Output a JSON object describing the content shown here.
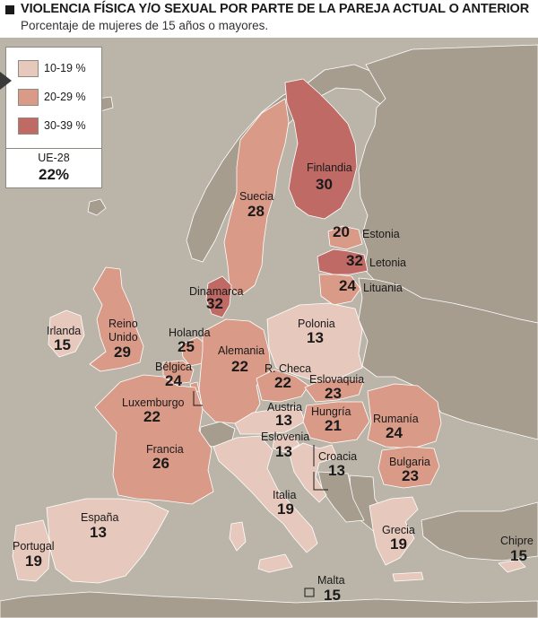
{
  "header": {
    "title": "VIOLENCIA FÍSICA Y/O SEXUAL POR PARTE DE LA PAREJA ACTUAL O ANTERIOR",
    "subtitle": "Porcentaje de mujeres de 15 años o mayores."
  },
  "legend": {
    "items": [
      {
        "label": "10-19 %",
        "color": "#e6c8bc"
      },
      {
        "label": "20-29 %",
        "color": "#d99a87"
      },
      {
        "label": "30-39 %",
        "color": "#c06a66"
      }
    ],
    "eu_label": "UE-28",
    "eu_value": "22%"
  },
  "colors": {
    "sea": "#bbb5a9",
    "non_eu_land": "#a69d8f",
    "border": "#ffffff"
  },
  "countries": {
    "finlandia": {
      "name": "Finlandia",
      "value": "30"
    },
    "suecia": {
      "name": "Suecia",
      "value": "28"
    },
    "estonia": {
      "name": "Estonia",
      "value": "20"
    },
    "letonia": {
      "name": "Letonia",
      "value": "32"
    },
    "lituania": {
      "name": "Lituania",
      "value": "24"
    },
    "dinamarca": {
      "name": "Dinamarca",
      "value": "32"
    },
    "irlanda": {
      "name": "Irlanda",
      "value": "15"
    },
    "reino_unido": {
      "name": "Reino Unido",
      "value": "29"
    },
    "holanda": {
      "name": "Holanda",
      "value": "25"
    },
    "belgica": {
      "name": "Bélgica",
      "value": "24"
    },
    "luxemburgo": {
      "name": "Luxemburgo",
      "value": "22"
    },
    "alemania": {
      "name": "Alemania",
      "value": "22"
    },
    "polonia": {
      "name": "Polonia",
      "value": "13"
    },
    "r_checa": {
      "name": "R. Checa",
      "value": "22"
    },
    "eslovaquia": {
      "name": "Eslovaquia",
      "value": "23"
    },
    "austria": {
      "name": "Austria",
      "value": "13"
    },
    "hungria": {
      "name": "Hungría",
      "value": "21"
    },
    "rumania": {
      "name": "Rumanía",
      "value": "24"
    },
    "eslovenia": {
      "name": "Eslovenia",
      "value": "13"
    },
    "croacia": {
      "name": "Croacia",
      "value": "13"
    },
    "bulgaria": {
      "name": "Bulgaria",
      "value": "23"
    },
    "francia": {
      "name": "Francia",
      "value": "26"
    },
    "italia": {
      "name": "Italia",
      "value": "19"
    },
    "espana": {
      "name": "España",
      "value": "13"
    },
    "portugal": {
      "name": "Portugal",
      "value": "19"
    },
    "grecia": {
      "name": "Grecia",
      "value": "19"
    },
    "chipre": {
      "name": "Chipre",
      "value": "15"
    },
    "malta": {
      "name": "Malta",
      "value": "15"
    }
  }
}
